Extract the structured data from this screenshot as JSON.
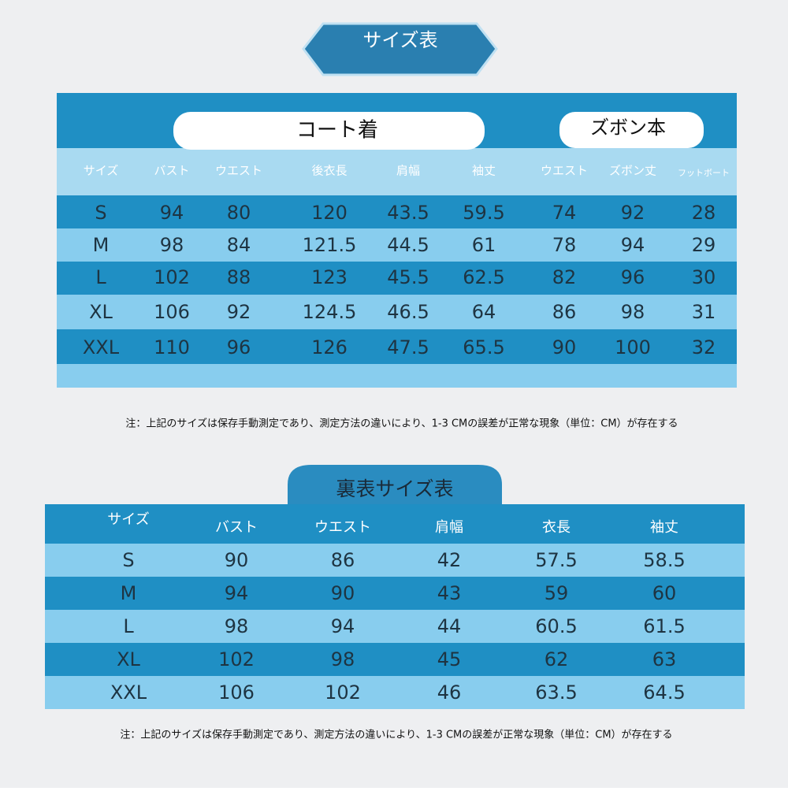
{
  "title": "サイズ表",
  "table1": {
    "groups": [
      "コート着",
      "ズボン本"
    ],
    "headers": [
      "サイズ",
      "バスト",
      "ウエスト",
      "後衣長",
      "肩幅",
      "袖丈",
      "ウエスト",
      "ズボン丈",
      "フットボート"
    ],
    "rows": [
      [
        "S",
        94,
        80,
        120,
        43.5,
        59.5,
        74,
        92,
        28
      ],
      [
        "M",
        98,
        84,
        121.5,
        44.5,
        61,
        78,
        94,
        29
      ],
      [
        "L",
        102,
        88,
        123,
        45.5,
        62.5,
        82,
        96,
        30
      ],
      [
        "XL",
        106,
        92,
        124.5,
        46.5,
        64,
        86,
        98,
        31
      ],
      [
        "XXL",
        110,
        96,
        126,
        47.5,
        65.5,
        90,
        100,
        32
      ]
    ]
  },
  "note1": "注：上記のサイズは保存手動測定であり、測定方法の違いにより、1-3 CMの誤差が正常な現象（単位：CM）が存在する",
  "title2": "裏表サイズ表",
  "table2": {
    "headers": [
      "サイズ",
      "バスト",
      "ウエスト",
      "肩幅",
      "衣長",
      "袖丈"
    ],
    "rows": [
      [
        "S",
        90,
        86,
        42,
        57.5,
        58.5
      ],
      [
        "M",
        94,
        90,
        43,
        59,
        60
      ],
      [
        "L",
        98,
        94,
        44,
        60.5,
        61.5
      ],
      [
        "XL",
        102,
        98,
        45,
        62,
        63
      ],
      [
        "XXL",
        106,
        102,
        46,
        63.5,
        64.5
      ]
    ]
  },
  "note2": "注：上記のサイズは保存手動測定であり、測定方法の違いにより、1-3 CMの誤差が正常な現象（単位：CM）が存在する"
}
